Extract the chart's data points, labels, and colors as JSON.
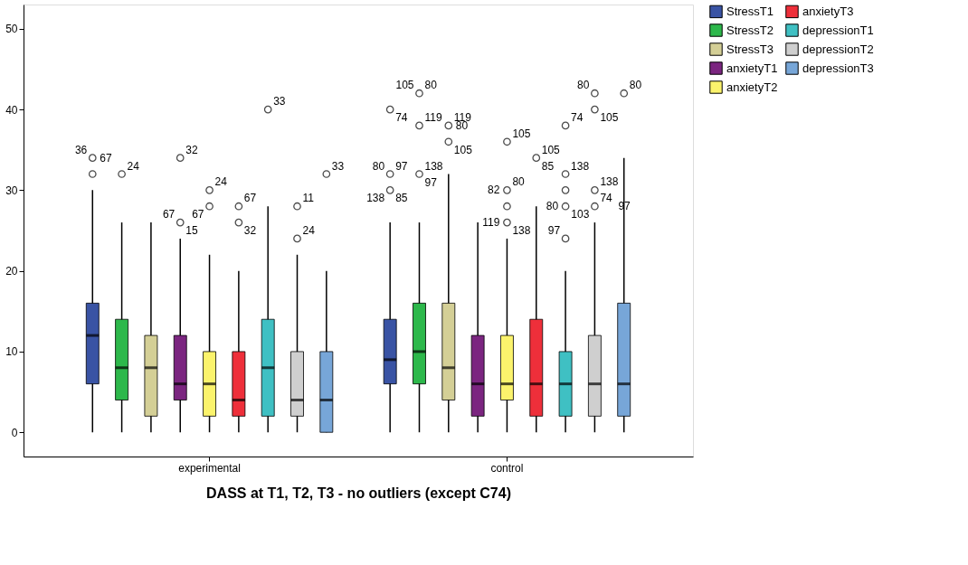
{
  "chart_data": {
    "type": "box",
    "xlabel": "DASS at T1, T2, T3 - no outliers (except C74)",
    "categories": [
      "experimental",
      "control"
    ],
    "ylim": [
      -3,
      53
    ],
    "yticks": [
      0,
      10,
      20,
      30,
      40,
      50
    ],
    "grid": false,
    "legend": "right",
    "series": [
      {
        "name": "StressT1",
        "color": "#3953a4",
        "boxes": [
          {
            "low": 0,
            "q1": 6,
            "median": 12,
            "q3": 16,
            "high": 30,
            "outliers": [
              32,
              34
            ]
          },
          {
            "low": 0,
            "q1": 6,
            "median": 9,
            "q3": 14,
            "high": 26,
            "outliers": [
              30,
              32,
              40
            ]
          }
        ]
      },
      {
        "name": "StressT2",
        "color": "#2db84b",
        "boxes": [
          {
            "low": 0,
            "q1": 4,
            "median": 8,
            "q3": 14,
            "high": 26,
            "outliers": [
              32
            ]
          },
          {
            "low": 0,
            "q1": 6,
            "median": 10,
            "q3": 16,
            "high": 26,
            "outliers": [
              32,
              38,
              42
            ]
          }
        ]
      },
      {
        "name": "StressT3",
        "color": "#d4cf96",
        "boxes": [
          {
            "low": 0,
            "q1": 2,
            "median": 8,
            "q3": 12,
            "high": 26
          },
          {
            "low": 0,
            "q1": 4,
            "median": 8,
            "q3": 16,
            "high": 32,
            "outliers": [
              36,
              38
            ]
          }
        ]
      },
      {
        "name": "anxietyT1",
        "color": "#7b2580",
        "boxes": [
          {
            "low": 0,
            "q1": 4,
            "median": 6,
            "q3": 12,
            "high": 24,
            "outliers": [
              26,
              34
            ]
          },
          {
            "low": 0,
            "q1": 2,
            "median": 6,
            "q3": 12,
            "high": 26
          }
        ]
      },
      {
        "name": "anxietyT2",
        "color": "#fbf36c",
        "boxes": [
          {
            "low": 0,
            "q1": 2,
            "median": 6,
            "q3": 10,
            "high": 22,
            "outliers": [
              28,
              30
            ]
          },
          {
            "low": 0,
            "q1": 4,
            "median": 6,
            "q3": 12,
            "high": 24,
            "outliers": [
              26,
              28,
              30,
              36
            ]
          }
        ]
      },
      {
        "name": "anxietyT3",
        "color": "#ee2f3a",
        "boxes": [
          {
            "low": 0,
            "q1": 2,
            "median": 4,
            "q3": 10,
            "high": 20,
            "outliers": [
              26,
              28
            ]
          },
          {
            "low": 0,
            "q1": 2,
            "median": 6,
            "q3": 14,
            "high": 28,
            "outliers": [
              34
            ]
          }
        ]
      },
      {
        "name": "depressionT1",
        "color": "#3fc0c3",
        "boxes": [
          {
            "low": 0,
            "q1": 2,
            "median": 8,
            "q3": 14,
            "high": 28,
            "outliers": [
              40
            ]
          },
          {
            "low": 0,
            "q1": 2,
            "median": 6,
            "q3": 10,
            "high": 20,
            "outliers": [
              24,
              28,
              30,
              32,
              38
            ]
          }
        ]
      },
      {
        "name": "depressionT2",
        "color": "#cfcfcf",
        "boxes": [
          {
            "low": 0,
            "q1": 2,
            "median": 4,
            "q3": 10,
            "high": 22,
            "outliers": [
              24,
              28
            ]
          },
          {
            "low": 0,
            "q1": 2,
            "median": 6,
            "q3": 12,
            "high": 26,
            "outliers": [
              28,
              30,
              40,
              42
            ]
          }
        ]
      },
      {
        "name": "depressionT3",
        "color": "#77a6d8",
        "boxes": [
          {
            "low": 0,
            "q1": 0,
            "median": 4,
            "q3": 10,
            "high": 20,
            "outliers": [
              32
            ]
          },
          {
            "low": 0,
            "q1": 2,
            "median": 6,
            "q3": 16,
            "high": 34,
            "outliers": [
              42
            ]
          }
        ]
      }
    ],
    "annotations": [
      "36",
      "67",
      "24",
      "32",
      "67",
      "15",
      "24",
      "67",
      "67",
      "32",
      "33",
      "11",
      "24",
      "33",
      "97",
      "80",
      "85",
      "138",
      "74",
      "80",
      "105",
      "119",
      "97",
      "138",
      "80",
      "119",
      "105",
      "119",
      "138",
      "80",
      "82",
      "105",
      "105",
      "85",
      "138",
      "80",
      "97",
      "74",
      "74",
      "103",
      "138",
      "105",
      "80",
      "97",
      "80"
    ]
  }
}
